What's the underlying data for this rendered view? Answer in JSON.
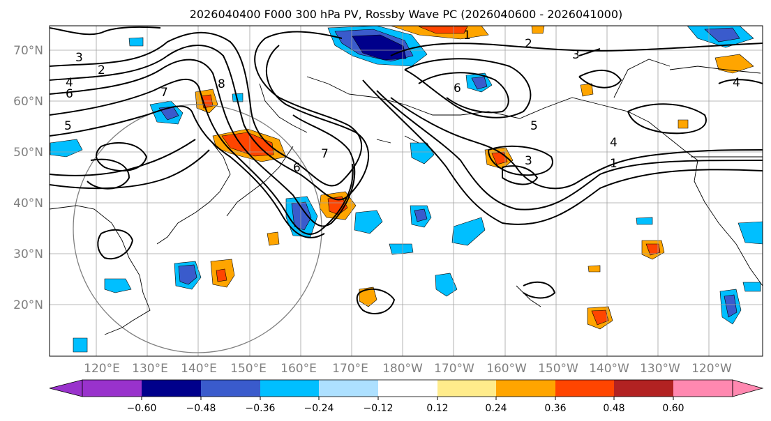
{
  "map": {
    "title": "2026040400 F000 300 hPa PV, Rossby Wave PC (2026040600 - 2026041000)",
    "lat_labels": [
      "70°N",
      "60°N",
      "50°N",
      "40°N",
      "30°N",
      "20°N"
    ],
    "lon_labels": [
      "120°E",
      "130°E",
      "140°E",
      "150°E",
      "160°E",
      "170°E",
      "180°W",
      "170°W",
      "160°W",
      "150°W",
      "140°W",
      "130°W",
      "120°W"
    ],
    "contour_labels": [
      "1",
      "1",
      "2",
      "2",
      "3",
      "3",
      "3",
      "4",
      "4",
      "4",
      "5",
      "5",
      "6",
      "6",
      "6",
      "7",
      "7",
      "8"
    ]
  },
  "colorbar": {
    "ticks": [
      "−0.60",
      "−0.48",
      "−0.36",
      "−0.24",
      "−0.12",
      "0.12",
      "0.24",
      "0.36",
      "0.48",
      "0.60"
    ],
    "colors": [
      "#9932CC",
      "#00008B",
      "#3A5BCC",
      "#00BFFF",
      "#ADE0FF",
      "#FFFFFF",
      "#FFEC8B",
      "#FFA500",
      "#FF4500",
      "#B22222",
      "#FF88B0"
    ]
  }
}
